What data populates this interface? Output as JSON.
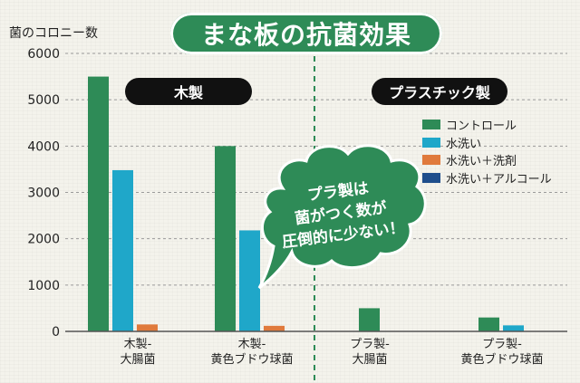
{
  "title": "まな板の抗菌効果",
  "chart_data": {
    "type": "bar",
    "ylabel": "菌のコロニー数",
    "ylim": [
      0,
      6000
    ],
    "yticks": [
      "0",
      "1000",
      "2000",
      "3000",
      "4000",
      "5000",
      "6000"
    ],
    "grid": true,
    "legend_position": "right",
    "categories": [
      [
        "木製-",
        "大腸菌"
      ],
      [
        "木製-",
        "黄色ブドウ球菌"
      ],
      [
        "プラ製-",
        "大腸菌"
      ],
      [
        "プラ製-",
        "黄色ブドウ球菌"
      ]
    ],
    "groups": [
      "木製",
      "プラスチック製"
    ],
    "series": [
      {
        "name": "コントロール",
        "color": "#2e8b57",
        "values": [
          5500,
          4000,
          500,
          300
        ]
      },
      {
        "name": "水洗い",
        "color": "#1fa7c9",
        "values": [
          3480,
          2180,
          0,
          130
        ]
      },
      {
        "name": "水洗い＋洗剤",
        "color": "#e07a3c",
        "values": [
          150,
          120,
          0,
          0
        ]
      },
      {
        "name": "水洗い＋アルコール",
        "color": "#1f4e8c",
        "values": [
          0,
          0,
          0,
          0
        ]
      }
    ],
    "annotation": [
      "プラ製は",
      "菌がつく数が",
      "圧倒的に少ない！"
    ]
  }
}
